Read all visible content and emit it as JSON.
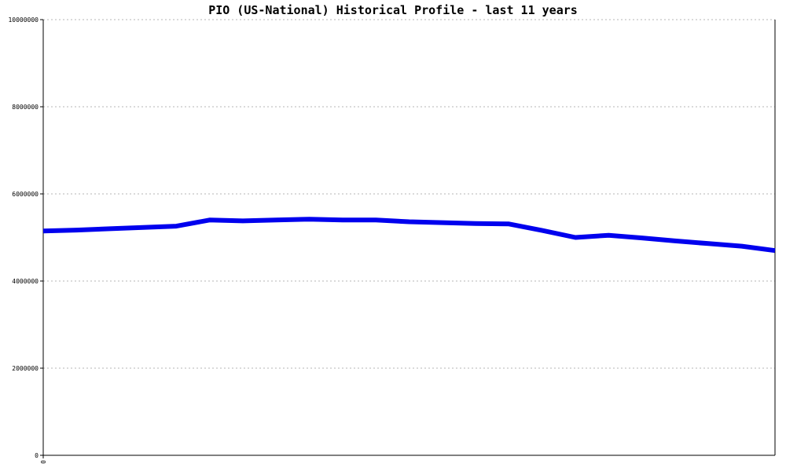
{
  "chart_data": {
    "type": "line",
    "title": "PIO (US-National) Historical Profile - last 11 years",
    "xlabel": "",
    "ylabel": "",
    "ylim": [
      0,
      10000000
    ],
    "y_ticks": [
      "0",
      "2000000",
      "4000000",
      "6000000",
      "8000000",
      "10000000"
    ],
    "x_ticks": [
      "0"
    ],
    "grid": true,
    "grid_style": "dotted",
    "series": [
      {
        "color": "#0000ee",
        "x": [
          0,
          1,
          2,
          3,
          4,
          5,
          6,
          7,
          8,
          9,
          10,
          11,
          12,
          13,
          14,
          15,
          16,
          17,
          18,
          19,
          20,
          21,
          22
        ],
        "values": [
          5150000,
          5170000,
          5200000,
          5230000,
          5260000,
          5400000,
          5380000,
          5400000,
          5420000,
          5400000,
          5400000,
          5360000,
          5340000,
          5320000,
          5310000,
          5160000,
          5000000,
          5050000,
          4990000,
          4920000,
          4860000,
          4800000,
          4700000
        ]
      }
    ],
    "x_range": [
      0,
      22
    ]
  }
}
